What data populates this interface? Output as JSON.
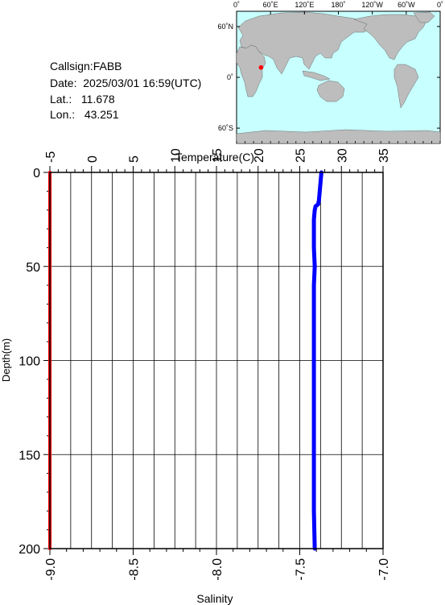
{
  "station": {
    "callsign_label": "Callsign:",
    "callsign": "FABB",
    "date_label": "Date:",
    "date": "2025/03/01 16:59(UTC)",
    "lat_label": "Lat.:",
    "lat": "11.678",
    "lon_label": "Lon.:",
    "lon": "43.251"
  },
  "map": {
    "top_labels": [
      "0˚",
      "60˚E",
      "120˚E",
      "180˚",
      "120˚W",
      "60˚W",
      "0˚"
    ],
    "side_labels": [
      "60˚N",
      "0˚",
      "60˚S"
    ],
    "ocean_color": "#c8ffff",
    "land_color": "#bdbdbd",
    "marker_color": "#ff0000",
    "marker_lat": 11.678,
    "marker_lon": 43.251
  },
  "chart_data": {
    "type": "line",
    "ylabel": "Depth(m)",
    "y_ticks": [
      0,
      50,
      100,
      150,
      200
    ],
    "ylim": [
      0,
      200
    ],
    "y_inverted": true,
    "grid": true,
    "top_axis": {
      "label": "Temperature(C)",
      "range": [
        -5,
        35
      ],
      "ticks": [
        -5,
        0,
        5,
        10,
        15,
        20,
        25,
        30,
        35
      ]
    },
    "bottom_axis": {
      "label": "Salinity",
      "range": [
        -9.0,
        -7.0
      ],
      "ticks": [
        "-9.0",
        "-8.5",
        "-8.0",
        "-7.5",
        "-7.0"
      ]
    },
    "series": [
      {
        "axis": "top",
        "color": "#0000ff",
        "depth": [
          0,
          5,
          10,
          15,
          17,
          18,
          20,
          25,
          30,
          40,
          50,
          60,
          70,
          80,
          100,
          120,
          140,
          160,
          180,
          200
        ],
        "values": [
          27.6,
          27.5,
          27.4,
          27.3,
          27.2,
          26.9,
          26.8,
          26.7,
          26.7,
          26.7,
          26.8,
          26.7,
          26.7,
          26.7,
          26.7,
          26.7,
          26.7,
          26.7,
          26.7,
          26.8
        ]
      },
      {
        "axis": "bottom",
        "color": "#ff0000",
        "depth": [
          0,
          200
        ],
        "values": [
          -9.0,
          -9.0
        ]
      }
    ]
  }
}
